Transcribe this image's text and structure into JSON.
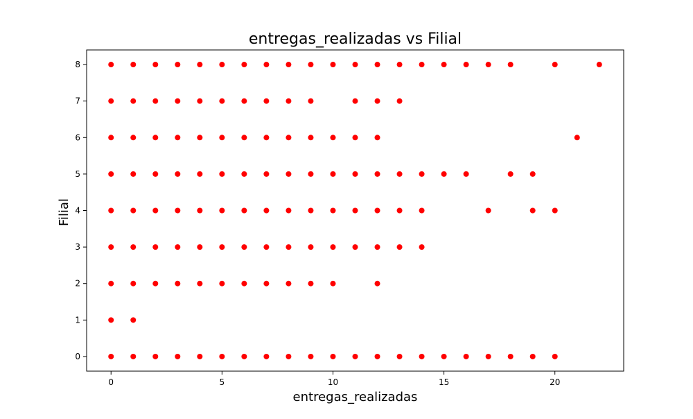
{
  "chart_data": {
    "type": "scatter",
    "title": "entregas_realizadas vs Filial",
    "xlabel": "entregas_realizadas",
    "ylabel": "Filial",
    "xlim": [
      -1.1,
      23.1
    ],
    "ylim": [
      -0.4,
      8.4
    ],
    "xticks": [
      0,
      5,
      10,
      15,
      20
    ],
    "yticks": [
      0,
      1,
      2,
      3,
      4,
      5,
      6,
      7,
      8
    ],
    "grid": false,
    "marker_color": "#ff0000",
    "series": [
      {
        "points": [
          [
            0,
            8
          ],
          [
            1,
            8
          ],
          [
            2,
            8
          ],
          [
            3,
            8
          ],
          [
            4,
            8
          ],
          [
            5,
            8
          ],
          [
            6,
            8
          ],
          [
            7,
            8
          ],
          [
            8,
            8
          ],
          [
            9,
            8
          ],
          [
            10,
            8
          ],
          [
            11,
            8
          ],
          [
            12,
            8
          ],
          [
            13,
            8
          ],
          [
            14,
            8
          ],
          [
            15,
            8
          ],
          [
            16,
            8
          ],
          [
            17,
            8
          ],
          [
            18,
            8
          ],
          [
            20,
            8
          ],
          [
            22,
            8
          ],
          [
            0,
            7
          ],
          [
            1,
            7
          ],
          [
            2,
            7
          ],
          [
            3,
            7
          ],
          [
            4,
            7
          ],
          [
            5,
            7
          ],
          [
            6,
            7
          ],
          [
            7,
            7
          ],
          [
            8,
            7
          ],
          [
            9,
            7
          ],
          [
            11,
            7
          ],
          [
            12,
            7
          ],
          [
            13,
            7
          ],
          [
            0,
            6
          ],
          [
            1,
            6
          ],
          [
            2,
            6
          ],
          [
            3,
            6
          ],
          [
            4,
            6
          ],
          [
            5,
            6
          ],
          [
            6,
            6
          ],
          [
            7,
            6
          ],
          [
            8,
            6
          ],
          [
            9,
            6
          ],
          [
            10,
            6
          ],
          [
            11,
            6
          ],
          [
            12,
            6
          ],
          [
            21,
            6
          ],
          [
            0,
            5
          ],
          [
            1,
            5
          ],
          [
            2,
            5
          ],
          [
            3,
            5
          ],
          [
            4,
            5
          ],
          [
            5,
            5
          ],
          [
            6,
            5
          ],
          [
            7,
            5
          ],
          [
            8,
            5
          ],
          [
            9,
            5
          ],
          [
            10,
            5
          ],
          [
            11,
            5
          ],
          [
            12,
            5
          ],
          [
            13,
            5
          ],
          [
            14,
            5
          ],
          [
            15,
            5
          ],
          [
            16,
            5
          ],
          [
            18,
            5
          ],
          [
            19,
            5
          ],
          [
            0,
            4
          ],
          [
            1,
            4
          ],
          [
            2,
            4
          ],
          [
            3,
            4
          ],
          [
            4,
            4
          ],
          [
            5,
            4
          ],
          [
            6,
            4
          ],
          [
            7,
            4
          ],
          [
            8,
            4
          ],
          [
            9,
            4
          ],
          [
            10,
            4
          ],
          [
            11,
            4
          ],
          [
            12,
            4
          ],
          [
            13,
            4
          ],
          [
            14,
            4
          ],
          [
            17,
            4
          ],
          [
            19,
            4
          ],
          [
            20,
            4
          ],
          [
            0,
            3
          ],
          [
            1,
            3
          ],
          [
            2,
            3
          ],
          [
            3,
            3
          ],
          [
            4,
            3
          ],
          [
            5,
            3
          ],
          [
            6,
            3
          ],
          [
            7,
            3
          ],
          [
            8,
            3
          ],
          [
            9,
            3
          ],
          [
            10,
            3
          ],
          [
            11,
            3
          ],
          [
            12,
            3
          ],
          [
            13,
            3
          ],
          [
            14,
            3
          ],
          [
            0,
            2
          ],
          [
            1,
            2
          ],
          [
            2,
            2
          ],
          [
            3,
            2
          ],
          [
            4,
            2
          ],
          [
            5,
            2
          ],
          [
            6,
            2
          ],
          [
            7,
            2
          ],
          [
            8,
            2
          ],
          [
            9,
            2
          ],
          [
            10,
            2
          ],
          [
            12,
            2
          ],
          [
            0,
            1
          ],
          [
            1,
            1
          ],
          [
            0,
            0
          ],
          [
            1,
            0
          ],
          [
            2,
            0
          ],
          [
            3,
            0
          ],
          [
            4,
            0
          ],
          [
            5,
            0
          ],
          [
            6,
            0
          ],
          [
            7,
            0
          ],
          [
            8,
            0
          ],
          [
            9,
            0
          ],
          [
            10,
            0
          ],
          [
            11,
            0
          ],
          [
            12,
            0
          ],
          [
            13,
            0
          ],
          [
            14,
            0
          ],
          [
            15,
            0
          ],
          [
            16,
            0
          ],
          [
            17,
            0
          ],
          [
            18,
            0
          ],
          [
            19,
            0
          ],
          [
            20,
            0
          ]
        ]
      }
    ]
  }
}
